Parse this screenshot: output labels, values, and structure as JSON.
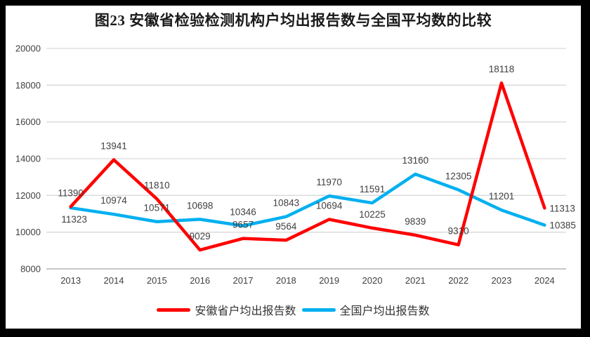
{
  "window": {
    "title": "图23 安徽省检验检测机构户均出报告数与全国平均数的比较"
  },
  "colors": {
    "anhui_line": "#FF0000",
    "national_line": "#00B0F0",
    "gridline": "#D9D9D9",
    "axis_line": "#A6A6A6",
    "tick_text": "#404040",
    "data_label_text": "#404040",
    "title_text": "#1A1A1A",
    "frame": "#000000",
    "background": "#FFFFFF"
  },
  "legend": {
    "items": [
      {
        "label": "安徽省户均出报告数",
        "color": "#FF0000"
      },
      {
        "label": "全国户均出报告数",
        "color": "#00B0F0"
      }
    ]
  },
  "chart_data": {
    "type": "line",
    "title": "图23 安徽省检验检测机构户均出报告数与全国平均数的比较",
    "categories": [
      "2013",
      "2014",
      "2015",
      "2016",
      "2017",
      "2018",
      "2019",
      "2020",
      "2021",
      "2022",
      "2023",
      "2024"
    ],
    "series": [
      {
        "name": "安徽省户均出报告数",
        "color": "#FF0000",
        "values": [
          11390,
          13941,
          11810,
          9029,
          9657,
          9564,
          10694,
          10225,
          9839,
          9310,
          18118,
          11313
        ]
      },
      {
        "name": "全国户均出报告数",
        "color": "#00B0F0",
        "values": [
          11323,
          10974,
          10571,
          10698,
          10346,
          10843,
          11970,
          11591,
          13160,
          12305,
          11201,
          10385
        ]
      }
    ],
    "ylim": [
      8000,
      20000
    ],
    "ytick_step": 2000,
    "yticks": [
      8000,
      10000,
      12000,
      14000,
      16000,
      18000,
      20000
    ],
    "grid": true,
    "data_labels": true,
    "legend_position": "bottom"
  }
}
